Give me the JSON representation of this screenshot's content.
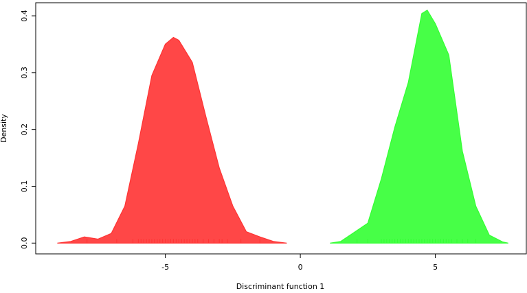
{
  "chart_data": {
    "type": "density",
    "x_label": "Discriminant function 1",
    "y_label": "Density",
    "xlim": [
      -9.8,
      8.37
    ],
    "ylim": [
      -0.019,
      0.423
    ],
    "xticks": [
      -5,
      0,
      5
    ],
    "yticks": [
      {
        "value": 0,
        "label": "0.0"
      },
      0.1,
      0.2,
      0.3,
      0.4
    ],
    "series": [
      {
        "color": "#ff3333",
        "x": [
          -9.0,
          -8.5,
          -8.0,
          -7.5,
          -7.0,
          -6.5,
          -6.0,
          -5.5,
          -5.0,
          -4.7,
          -4.5,
          -4.0,
          -3.5,
          -3.0,
          -2.5,
          -2.0,
          -1.5,
          -1.0,
          -0.5
        ],
        "values": [
          0.0,
          0.003,
          0.011,
          0.007,
          0.017,
          0.065,
          0.175,
          0.295,
          0.35,
          0.362,
          0.357,
          0.318,
          0.223,
          0.132,
          0.065,
          0.02,
          0.011,
          0.003,
          0.0
        ],
        "rug": [
          -7.9,
          -6.8,
          -6.2,
          -6.0,
          -5.9,
          -5.8,
          -5.7,
          -5.6,
          -5.5,
          -5.4,
          -5.3,
          -5.2,
          -5.1,
          -5.0,
          -4.9,
          -4.8,
          -4.7,
          -4.6,
          -4.5,
          -4.4,
          -4.3,
          -4.2,
          -4.1,
          -4.0,
          -3.9,
          -3.8,
          -3.6,
          -3.4,
          -3.2,
          -3.0,
          -2.9,
          -2.7,
          -2.2,
          -1.5
        ]
      },
      {
        "color": "#33ff33",
        "x": [
          1.1,
          1.5,
          2.0,
          2.5,
          3.0,
          3.5,
          4.0,
          4.5,
          4.7,
          5.0,
          5.5,
          6.0,
          6.5,
          7.0,
          7.5,
          7.7
        ],
        "values": [
          0.0,
          0.003,
          0.019,
          0.035,
          0.113,
          0.204,
          0.283,
          0.404,
          0.41,
          0.386,
          0.331,
          0.162,
          0.065,
          0.014,
          0.002,
          0.0
        ],
        "rug": [
          2.1,
          2.5,
          3.0,
          3.1,
          3.2,
          3.3,
          3.4,
          3.5,
          3.6,
          3.7,
          3.8,
          3.9,
          4.0,
          4.1,
          4.2,
          4.3,
          4.4,
          4.5,
          4.6,
          4.7,
          4.8,
          4.9,
          5.0,
          5.1,
          5.2,
          5.3,
          5.4,
          5.5,
          5.6,
          5.8,
          6.0,
          6.2,
          6.5
        ]
      }
    ]
  }
}
